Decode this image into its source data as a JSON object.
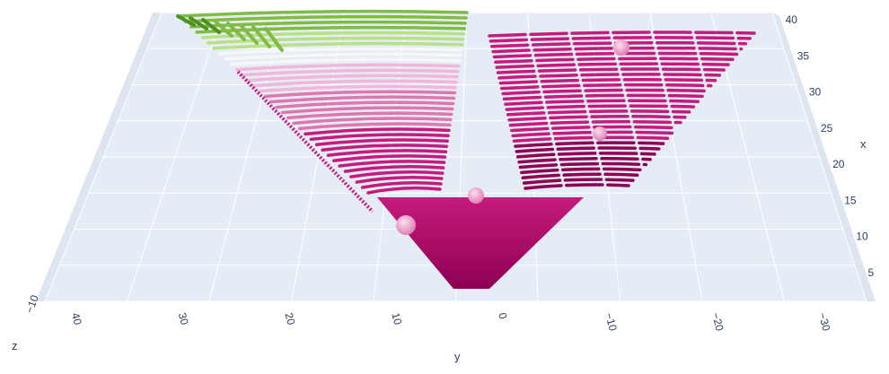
{
  "chart_data": {
    "type": "scatter3d",
    "title": "",
    "axes": {
      "x": {
        "label": "x",
        "ticks": [
          "5",
          "10",
          "15",
          "20",
          "25",
          "30",
          "35",
          "40"
        ],
        "range": [
          1,
          41
        ]
      },
      "y": {
        "label": "y",
        "ticks": [
          "40",
          "30",
          "20",
          "10",
          "0",
          "−10",
          "−20",
          "−30"
        ],
        "range": [
          42,
          -35
        ]
      },
      "z": {
        "label": "z",
        "ticks": [
          "−10"
        ]
      }
    },
    "colorscale": "PiYG",
    "grid": true,
    "legend": "none",
    "background_color": "#e5ecf6",
    "colors": {
      "dark_magenta": "#8e0152",
      "magenta": "#c51b7d",
      "pink": "#de77ae",
      "light_pink": "#f1b6da",
      "white": "#f7f7f7",
      "light_green": "#b8e186",
      "green": "#7fbc41",
      "dark_green": "#4d9221"
    },
    "data_description": "Point cloud spreading along y as x increases, colored by z"
  }
}
